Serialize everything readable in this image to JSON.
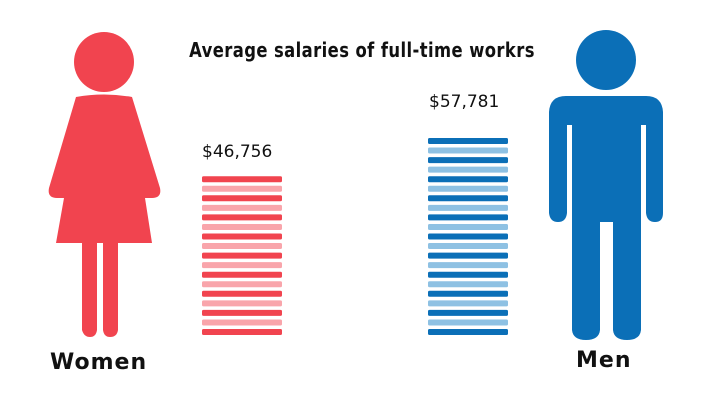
{
  "chart_data": {
    "type": "bar",
    "title": "Average salaries of full-time workrs",
    "categories": [
      "Women",
      "Men"
    ],
    "values": [
      46756,
      57781
    ],
    "value_labels": [
      "$46,756",
      "$57,781"
    ],
    "colors": {
      "Women": {
        "dark": "#f1444f",
        "light": "#f9a5ab"
      },
      "Men": {
        "dark": "#0b6fb7",
        "light": "#8ec1e3"
      }
    },
    "grid": false,
    "legend": "none"
  },
  "icons": {
    "women": "woman-figure-icon",
    "men": "man-figure-icon"
  }
}
